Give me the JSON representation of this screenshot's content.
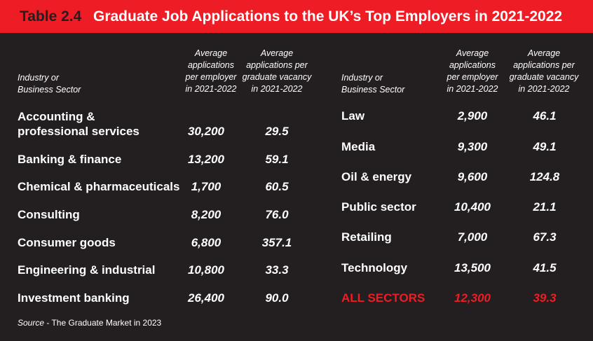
{
  "title": {
    "number": "Table 2.4",
    "text": "Graduate Job Applications to the UK’s Top Employers in 2021-2022"
  },
  "headers": {
    "sector": [
      "Industry or",
      "Business Sector"
    ],
    "per_employer": [
      "Average",
      "applications",
      "per employer",
      "in 2021-2022"
    ],
    "per_vacancy": [
      "Average",
      "applications per",
      "graduate vacancy",
      "in 2021-2022"
    ]
  },
  "left_rows": [
    {
      "sector": [
        "Accounting &",
        "professional services"
      ],
      "per_employer": "30,200",
      "per_vacancy": "29.5"
    },
    {
      "sector": "Banking & finance",
      "per_employer": "13,200",
      "per_vacancy": "59.1"
    },
    {
      "sector": "Chemical & pharmaceuticals",
      "per_employer": "1,700",
      "per_vacancy": "60.5"
    },
    {
      "sector": "Consulting",
      "per_employer": "8,200",
      "per_vacancy": "76.0"
    },
    {
      "sector": "Consumer goods",
      "per_employer": "6,800",
      "per_vacancy": "357.1"
    },
    {
      "sector": "Engineering & industrial",
      "per_employer": "10,800",
      "per_vacancy": "33.3"
    },
    {
      "sector": "Investment banking",
      "per_employer": "26,400",
      "per_vacancy": "90.0"
    }
  ],
  "right_rows": [
    {
      "sector": "Law",
      "per_employer": "2,900",
      "per_vacancy": "46.1"
    },
    {
      "sector": "Media",
      "per_employer": "9,300",
      "per_vacancy": "49.1"
    },
    {
      "sector": "Oil & energy",
      "per_employer": "9,600",
      "per_vacancy": "124.8"
    },
    {
      "sector": "Public sector",
      "per_employer": "10,400",
      "per_vacancy": "21.1"
    },
    {
      "sector": "Retailing",
      "per_employer": "7,000",
      "per_vacancy": "67.3"
    },
    {
      "sector": "Technology",
      "per_employer": "13,500",
      "per_vacancy": "41.5"
    }
  ],
  "total_row": {
    "sector": "ALL SECTORS",
    "per_employer": "12,300",
    "per_vacancy": "39.3"
  },
  "source": {
    "label": "Source",
    "text": " - The Graduate Market in 2023"
  },
  "colors": {
    "background": "#231f20",
    "accent": "#ee1c25",
    "text": "#ffffff"
  }
}
